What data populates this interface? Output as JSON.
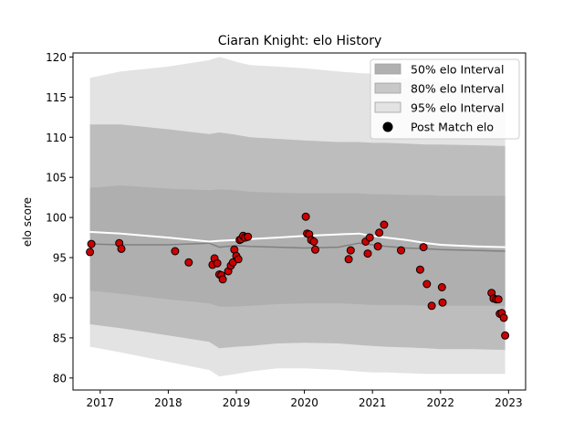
{
  "chart_data": {
    "type": "area",
    "title": "Ciaran Knight: elo History",
    "xlabel": "",
    "ylabel": "elo score",
    "xlim": [
      2016.6,
      2023.25
    ],
    "ylim": [
      78.5,
      120.5
    ],
    "x_ticks": [
      2017,
      2018,
      2019,
      2020,
      2021,
      2022,
      2023
    ],
    "x_tick_labels": [
      "2017",
      "2018",
      "2019",
      "2020",
      "2021",
      "2022",
      "2023"
    ],
    "y_ticks": [
      80,
      85,
      90,
      95,
      100,
      105,
      110,
      115,
      120
    ],
    "y_tick_labels": [
      "80",
      "85",
      "90",
      "95",
      "100",
      "105",
      "110",
      "115",
      "120"
    ],
    "grid": false,
    "legend_position": "top-right",
    "colors": {
      "band50": "#9e9e9e",
      "band80": "#bdbdbd",
      "band95": "#e3e3e3",
      "mean_line": "#ffffff",
      "median_line": "#808080",
      "point_fill": "#cc0000",
      "point_edge": "#000000"
    },
    "legend": [
      {
        "label": "50% elo Interval",
        "kind": "band50"
      },
      {
        "label": "80% elo Interval",
        "kind": "band80"
      },
      {
        "label": "95% elo Interval",
        "kind": "band95"
      },
      {
        "label": "Post Match elo",
        "kind": "point"
      }
    ],
    "bands": {
      "x": [
        2016.85,
        2017.3,
        2018.0,
        2018.6,
        2018.75,
        2019.0,
        2019.2,
        2019.6,
        2020.0,
        2020.5,
        2020.8,
        2021.0,
        2021.2,
        2021.5,
        2021.8,
        2022.0,
        2022.5,
        2022.95
      ],
      "p95_upper": [
        117.4,
        118.2,
        118.8,
        119.6,
        120.0,
        119.4,
        119.0,
        118.8,
        118.6,
        118.2,
        118.0,
        117.9,
        117.6,
        117.3,
        117.0,
        116.8,
        116.4,
        116.2
      ],
      "p95_lower": [
        83.9,
        83.2,
        82.0,
        81.0,
        80.2,
        80.5,
        80.8,
        81.2,
        81.2,
        81.0,
        80.8,
        80.7,
        80.7,
        80.6,
        80.5,
        80.5,
        80.5,
        80.5
      ],
      "p80_upper": [
        111.6,
        111.6,
        111.0,
        110.4,
        110.6,
        110.3,
        110.0,
        109.8,
        109.6,
        109.4,
        109.4,
        109.3,
        109.3,
        109.2,
        109.1,
        109.1,
        109.0,
        108.9
      ],
      "p80_lower": [
        86.7,
        86.2,
        85.3,
        84.5,
        83.7,
        83.9,
        84.0,
        84.3,
        84.4,
        84.3,
        84.1,
        84.0,
        83.9,
        83.8,
        83.7,
        83.6,
        83.6,
        83.5
      ],
      "p50_upper": [
        103.7,
        104.0,
        103.6,
        103.4,
        103.5,
        103.4,
        103.2,
        103.1,
        103.0,
        103.0,
        103.0,
        102.9,
        102.9,
        102.8,
        102.8,
        102.7,
        102.7,
        102.7
      ],
      "p50_lower": [
        90.9,
        90.5,
        89.8,
        89.3,
        88.9,
        88.9,
        89.0,
        89.2,
        89.3,
        89.3,
        89.2,
        89.1,
        89.1,
        89.1,
        89.0,
        89.0,
        89.0,
        89.0
      ],
      "mean": [
        98.2,
        98.0,
        97.5,
        97.0,
        97.1,
        97.2,
        97.3,
        97.5,
        97.7,
        97.9,
        98.0,
        97.7,
        97.5,
        97.2,
        96.8,
        96.6,
        96.4,
        96.3
      ],
      "median": [
        96.7,
        96.6,
        96.6,
        96.8,
        96.3,
        96.5,
        96.4,
        96.3,
        96.2,
        96.3,
        96.8,
        96.6,
        96.4,
        96.2,
        96.1,
        96.0,
        95.9,
        95.8
      ]
    },
    "points": {
      "x": [
        2016.85,
        2016.87,
        2017.28,
        2017.31,
        2018.1,
        2018.3,
        2018.65,
        2018.68,
        2018.72,
        2018.75,
        2018.78,
        2018.8,
        2018.88,
        2018.92,
        2018.95,
        2018.97,
        2019.0,
        2019.03,
        2019.05,
        2019.07,
        2019.1,
        2019.13,
        2019.17,
        2020.02,
        2020.04,
        2020.07,
        2020.1,
        2020.14,
        2020.16,
        2020.65,
        2020.68,
        2020.9,
        2020.93,
        2020.96,
        2021.08,
        2021.1,
        2021.17,
        2021.42,
        2021.7,
        2021.75,
        2021.8,
        2021.87,
        2022.02,
        2022.03,
        2022.75,
        2022.78,
        2022.82,
        2022.85,
        2022.87,
        2022.9,
        2022.93,
        2022.95
      ],
      "y": [
        95.7,
        96.7,
        96.8,
        96.1,
        95.8,
        94.4,
        94.1,
        94.9,
        94.3,
        92.9,
        92.8,
        92.3,
        93.3,
        94.0,
        94.4,
        96.0,
        95.2,
        94.8,
        97.2,
        97.3,
        97.7,
        97.5,
        97.6,
        100.1,
        98.0,
        97.9,
        97.2,
        97.0,
        96.0,
        94.8,
        95.9,
        97.0,
        95.5,
        97.5,
        96.4,
        98.1,
        99.1,
        95.9,
        93.5,
        96.3,
        91.7,
        89.0,
        91.3,
        89.4,
        90.6,
        89.9,
        89.8,
        89.8,
        88.0,
        88.1,
        87.5,
        85.3
      ]
    }
  }
}
